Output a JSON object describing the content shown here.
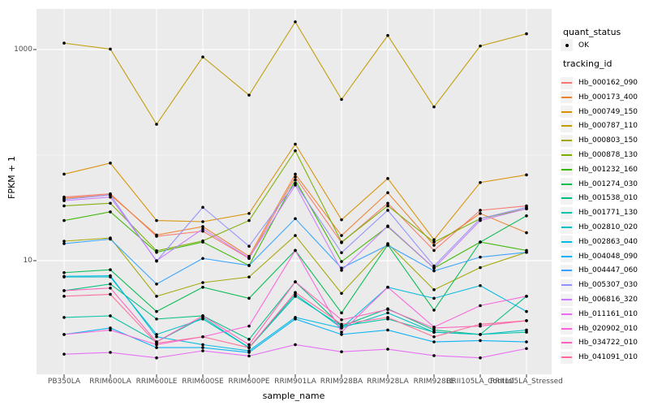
{
  "figure": {
    "panel_bg": "#EBEBEB",
    "grid_color": "#FFFFFF",
    "axis_text_color": "#4D4D4D",
    "tick_mark_color": "#333333",
    "point_color": "#000000"
  },
  "legend": {
    "quant_status_title": "quant_status",
    "quant_status_items": [
      {
        "label": "OK",
        "marker": "point"
      }
    ],
    "tracking_id_title": "tracking_id"
  },
  "chart_data": {
    "type": "line",
    "title": "",
    "xlabel": "sample_name",
    "ylabel": "FPKM + 1",
    "yscale": "log10",
    "ylim": [
      0.85,
      2400
    ],
    "y_tick_values": [
      1000,
      10
    ],
    "y_tick_labels": [
      "1000",
      "10"
    ],
    "y_minor_gridlines": [
      100
    ],
    "grid": "on",
    "legend_position": "right",
    "point_marker": "black-dot",
    "categories": [
      "PB350LA",
      "RRIM600LA",
      "RRIM600LE",
      "RRIM600SE",
      "RRIM600PE",
      "RRIM901LA",
      "RRIM928BA",
      "RRIM928LA",
      "RRIM928LE",
      "RRII105LA_Control",
      "RRII105LA_Stressed"
    ],
    "series": [
      {
        "name": "Hb_000162_090",
        "color": "#F8766D",
        "values": [
          40,
          43,
          17,
          19,
          10.5,
          62,
          14.8,
          35,
          12.5,
          30,
          33
        ]
      },
      {
        "name": "Hb_000173_400",
        "color": "#EA8331",
        "values": [
          39,
          42,
          17.5,
          21,
          11,
          66,
          17.3,
          44,
          14,
          28,
          18.4
        ]
      },
      {
        "name": "Hb_000749_150",
        "color": "#D89000",
        "values": [
          66,
          84,
          24,
          23.4,
          28,
          127,
          24.4,
          60,
          15.8,
          55,
          65
        ]
      },
      {
        "name": "Hb_000787_110",
        "color": "#C09B00",
        "values": [
          1150,
          1010,
          196,
          850,
          370,
          1830,
          337,
          1360,
          286,
          1080,
          1410
        ]
      },
      {
        "name": "Hb_000803_150",
        "color": "#A3A500",
        "values": [
          15.3,
          16.4,
          4.6,
          6.2,
          7,
          17.3,
          4.9,
          14.5,
          5.3,
          8.6,
          12
        ]
      },
      {
        "name": "Hb_000878_130",
        "color": "#7CAE00",
        "values": [
          33,
          35,
          12.4,
          15.4,
          24,
          110,
          15,
          33,
          15,
          25,
          31
        ]
      },
      {
        "name": "Hb_001232_160",
        "color": "#39B600",
        "values": [
          24,
          29,
          12,
          15,
          9,
          58,
          9.8,
          21,
          8.5,
          15,
          12.5
        ]
      },
      {
        "name": "Hb_001274_030",
        "color": "#00BB4E",
        "values": [
          7.7,
          8.2,
          3.3,
          5.6,
          4.4,
          12.5,
          3.2,
          14.1,
          3.4,
          15,
          26.6
        ]
      },
      {
        "name": "Hb_001538_010",
        "color": "#00BF7D",
        "values": [
          5.2,
          6,
          2.8,
          3,
          1.8,
          6.3,
          2.4,
          3.5,
          2.2,
          2,
          4.6
        ]
      },
      {
        "name": "Hb_001771_130",
        "color": "#00C1A3",
        "values": [
          2.9,
          3,
          1.7,
          2.9,
          1.5,
          4.6,
          2.4,
          2.8,
          2.1,
          2,
          2.1
        ]
      },
      {
        "name": "Hb_002810_020",
        "color": "#00BFC4",
        "values": [
          7,
          7,
          2,
          2.8,
          1.5,
          4.8,
          2.3,
          3.2,
          2.1,
          2,
          2.2
        ]
      },
      {
        "name": "Hb_002863_040",
        "color": "#00BAE0",
        "values": [
          7.1,
          7.2,
          1.9,
          1.6,
          1.4,
          2.9,
          2.3,
          5.6,
          4.4,
          5.8,
          3.3
        ]
      },
      {
        "name": "Hb_004048_090",
        "color": "#00B0F6",
        "values": [
          2,
          2.3,
          1.5,
          1.5,
          1.35,
          2.8,
          2,
          2.2,
          1.7,
          1.75,
          1.7
        ]
      },
      {
        "name": "Hb_004447_060",
        "color": "#35A2FF",
        "values": [
          14.5,
          16,
          6,
          10.5,
          9,
          25,
          8.5,
          14,
          8,
          10.8,
          12
        ]
      },
      {
        "name": "Hb_005307_030",
        "color": "#9590FF",
        "values": [
          38,
          42,
          9.9,
          32,
          13.7,
          54,
          11.9,
          30,
          8.9,
          25,
          32
        ]
      },
      {
        "name": "Hb_006816_320",
        "color": "#C77CFF",
        "values": [
          37,
          40,
          10,
          20,
          10.6,
          52,
          8.1,
          21.3,
          8.5,
          24,
          31
        ]
      },
      {
        "name": "Hb_011161_010",
        "color": "#E76BF3",
        "values": [
          1.3,
          1.35,
          1.2,
          1.4,
          1.25,
          1.6,
          1.37,
          1.45,
          1.26,
          1.2,
          1.47
        ]
      },
      {
        "name": "Hb_020902_010",
        "color": "#FA62DB",
        "values": [
          2,
          2.2,
          1.6,
          1.9,
          2.4,
          12.5,
          2.1,
          5.6,
          2.35,
          3.75,
          4.6
        ]
      },
      {
        "name": "Hb_034722_010",
        "color": "#FF62BC",
        "values": [
          5.2,
          5.5,
          1.7,
          3,
          1.6,
          6.3,
          2.75,
          3.45,
          2.3,
          2.4,
          2.7
        ]
      },
      {
        "name": "Hb_041091_010",
        "color": "#FF6A98",
        "values": [
          4.6,
          4.8,
          1.65,
          1.9,
          1.5,
          5,
          2.5,
          2.9,
          1.9,
          2.5,
          2.7
        ]
      }
    ]
  }
}
